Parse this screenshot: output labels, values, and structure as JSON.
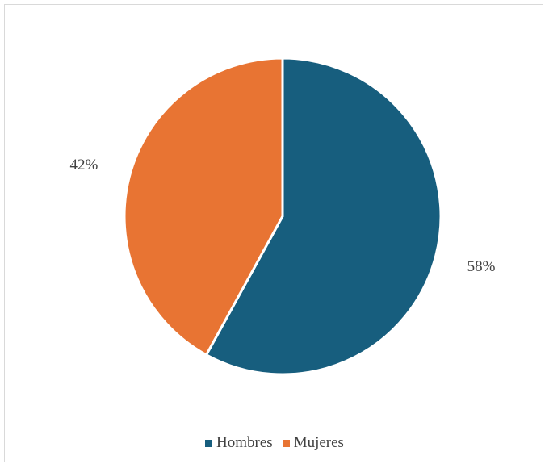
{
  "chart_data": {
    "type": "pie",
    "categories": [
      "Hombres",
      "Mujeres"
    ],
    "values": [
      58,
      42
    ],
    "data_labels": [
      "58%",
      "42%"
    ],
    "colors": [
      "#175e7e",
      "#e87433"
    ],
    "legend_position": "bottom",
    "start_angle_deg": 0,
    "direction": "clockwise",
    "title": ""
  },
  "legend": {
    "items": [
      {
        "label": "Hombres",
        "color": "#175e7e"
      },
      {
        "label": "Mujeres",
        "color": "#e87433"
      }
    ]
  }
}
